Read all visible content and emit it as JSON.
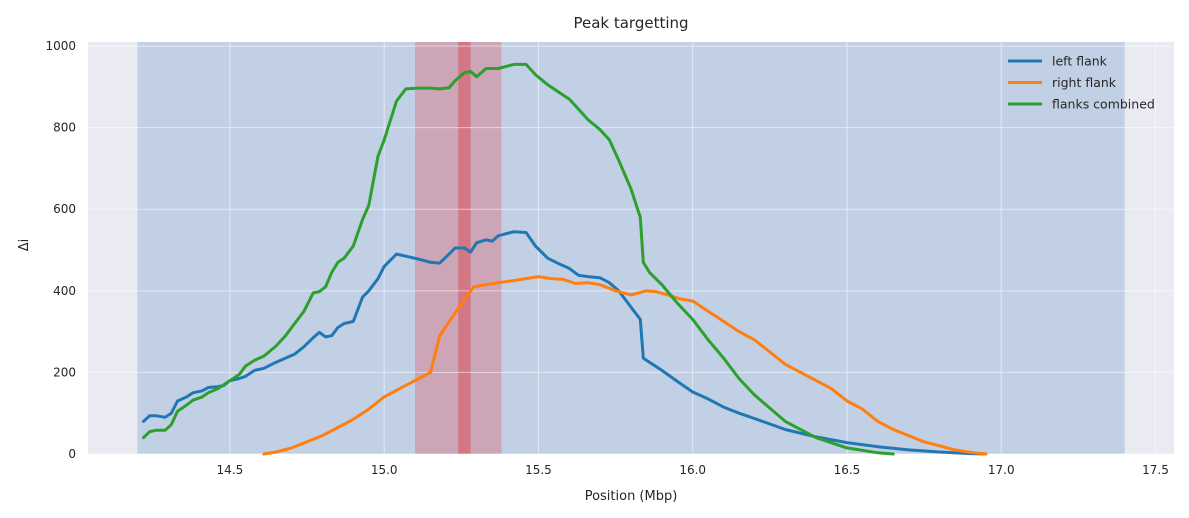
{
  "chart_data": {
    "type": "line",
    "title": "Peak targetting",
    "xlabel": "Position (Mbp)",
    "ylabel": "Δi",
    "xlim": [
      14.04,
      17.56
    ],
    "ylim": [
      0,
      1010
    ],
    "xticks": [
      14.5,
      15.0,
      15.5,
      16.0,
      16.5,
      17.0,
      17.5
    ],
    "xtick_labels": [
      "14.5",
      "15.0",
      "15.5",
      "16.0",
      "16.5",
      "17.0",
      "17.5"
    ],
    "yticks": [
      0,
      200,
      400,
      600,
      800,
      1000
    ],
    "ytick_labels": [
      "0",
      "200",
      "400",
      "600",
      "800",
      "1000"
    ],
    "grid": true,
    "legend_position": "top-right",
    "spans": [
      {
        "x0": 14.2,
        "x1": 17.4,
        "color": "#4c84c4",
        "opacity": 0.25
      },
      {
        "x0": 15.1,
        "x1": 15.38,
        "color": "#e0565e",
        "opacity": 0.35
      },
      {
        "x0": 15.24,
        "x1": 15.28,
        "color": "#d94048",
        "opacity": 0.45
      }
    ],
    "series": [
      {
        "name": "left flank",
        "color": "#1f77b4",
        "points": [
          [
            14.22,
            80
          ],
          [
            14.24,
            94
          ],
          [
            14.26,
            94
          ],
          [
            14.29,
            90
          ],
          [
            14.31,
            100
          ],
          [
            14.33,
            130
          ],
          [
            14.36,
            140
          ],
          [
            14.38,
            150
          ],
          [
            14.41,
            155
          ],
          [
            14.43,
            163
          ],
          [
            14.46,
            165
          ],
          [
            14.48,
            168
          ],
          [
            14.5,
            180
          ],
          [
            14.53,
            185
          ],
          [
            14.55,
            190
          ],
          [
            14.58,
            205
          ],
          [
            14.61,
            210
          ],
          [
            14.65,
            225
          ],
          [
            14.68,
            235
          ],
          [
            14.71,
            245
          ],
          [
            14.74,
            263
          ],
          [
            14.77,
            285
          ],
          [
            14.79,
            298
          ],
          [
            14.81,
            287
          ],
          [
            14.83,
            290
          ],
          [
            14.85,
            310
          ],
          [
            14.87,
            320
          ],
          [
            14.9,
            325
          ],
          [
            14.93,
            385
          ],
          [
            14.95,
            400
          ],
          [
            14.98,
            430
          ],
          [
            15.0,
            460
          ],
          [
            15.04,
            490
          ],
          [
            15.07,
            485
          ],
          [
            15.11,
            478
          ],
          [
            15.15,
            470
          ],
          [
            15.18,
            468
          ],
          [
            15.21,
            490
          ],
          [
            15.23,
            505
          ],
          [
            15.26,
            505
          ],
          [
            15.28,
            495
          ],
          [
            15.3,
            518
          ],
          [
            15.33,
            525
          ],
          [
            15.35,
            522
          ],
          [
            15.37,
            535
          ],
          [
            15.42,
            545
          ],
          [
            15.46,
            543
          ],
          [
            15.49,
            510
          ],
          [
            15.53,
            480
          ],
          [
            15.57,
            465
          ],
          [
            15.6,
            455
          ],
          [
            15.63,
            438
          ],
          [
            15.66,
            435
          ],
          [
            15.7,
            432
          ],
          [
            15.73,
            420
          ],
          [
            15.76,
            400
          ],
          [
            15.8,
            360
          ],
          [
            15.83,
            330
          ],
          [
            15.84,
            235
          ],
          [
            15.86,
            225
          ],
          [
            15.9,
            205
          ],
          [
            15.95,
            178
          ],
          [
            16.0,
            152
          ],
          [
            16.05,
            135
          ],
          [
            16.1,
            115
          ],
          [
            16.15,
            100
          ],
          [
            16.2,
            87
          ],
          [
            16.3,
            60
          ],
          [
            16.4,
            42
          ],
          [
            16.5,
            28
          ],
          [
            16.6,
            18
          ],
          [
            16.7,
            10
          ],
          [
            16.8,
            5
          ],
          [
            16.9,
            1
          ],
          [
            16.95,
            0
          ]
        ]
      },
      {
        "name": "right flank",
        "color": "#ff7f0e",
        "points": [
          [
            14.61,
            0
          ],
          [
            14.65,
            5
          ],
          [
            14.7,
            15
          ],
          [
            14.75,
            30
          ],
          [
            14.8,
            45
          ],
          [
            14.85,
            65
          ],
          [
            14.9,
            85
          ],
          [
            14.95,
            110
          ],
          [
            15.0,
            140
          ],
          [
            15.05,
            160
          ],
          [
            15.1,
            180
          ],
          [
            15.15,
            200
          ],
          [
            15.18,
            290
          ],
          [
            15.22,
            335
          ],
          [
            15.26,
            378
          ],
          [
            15.29,
            410
          ],
          [
            15.33,
            415
          ],
          [
            15.37,
            420
          ],
          [
            15.42,
            425
          ],
          [
            15.46,
            430
          ],
          [
            15.5,
            435
          ],
          [
            15.54,
            430
          ],
          [
            15.58,
            428
          ],
          [
            15.62,
            418
          ],
          [
            15.66,
            420
          ],
          [
            15.7,
            415
          ],
          [
            15.75,
            400
          ],
          [
            15.8,
            390
          ],
          [
            15.85,
            400
          ],
          [
            15.88,
            398
          ],
          [
            15.92,
            390
          ],
          [
            15.96,
            380
          ],
          [
            16.0,
            375
          ],
          [
            16.05,
            350
          ],
          [
            16.1,
            325
          ],
          [
            16.15,
            300
          ],
          [
            16.2,
            280
          ],
          [
            16.25,
            250
          ],
          [
            16.3,
            220
          ],
          [
            16.35,
            200
          ],
          [
            16.4,
            180
          ],
          [
            16.45,
            160
          ],
          [
            16.5,
            130
          ],
          [
            16.55,
            110
          ],
          [
            16.6,
            80
          ],
          [
            16.65,
            60
          ],
          [
            16.7,
            45
          ],
          [
            16.75,
            30
          ],
          [
            16.8,
            20
          ],
          [
            16.85,
            10
          ],
          [
            16.9,
            4
          ],
          [
            16.95,
            0
          ]
        ]
      },
      {
        "name": "flanks combined",
        "color": "#2ca02c",
        "points": [
          [
            14.22,
            40
          ],
          [
            14.24,
            55
          ],
          [
            14.26,
            58
          ],
          [
            14.29,
            58
          ],
          [
            14.31,
            72
          ],
          [
            14.33,
            105
          ],
          [
            14.36,
            120
          ],
          [
            14.38,
            132
          ],
          [
            14.41,
            140
          ],
          [
            14.43,
            150
          ],
          [
            14.46,
            160
          ],
          [
            14.48,
            170
          ],
          [
            14.5,
            180
          ],
          [
            14.53,
            195
          ],
          [
            14.55,
            215
          ],
          [
            14.58,
            230
          ],
          [
            14.61,
            240
          ],
          [
            14.65,
            265
          ],
          [
            14.68,
            290
          ],
          [
            14.71,
            320
          ],
          [
            14.74,
            350
          ],
          [
            14.77,
            395
          ],
          [
            14.79,
            398
          ],
          [
            14.81,
            410
          ],
          [
            14.83,
            445
          ],
          [
            14.85,
            470
          ],
          [
            14.87,
            480
          ],
          [
            14.9,
            510
          ],
          [
            14.93,
            575
          ],
          [
            14.95,
            610
          ],
          [
            14.98,
            730
          ],
          [
            15.0,
            770
          ],
          [
            15.04,
            865
          ],
          [
            15.07,
            895
          ],
          [
            15.11,
            897
          ],
          [
            15.15,
            897
          ],
          [
            15.18,
            895
          ],
          [
            15.21,
            898
          ],
          [
            15.23,
            915
          ],
          [
            15.26,
            935
          ],
          [
            15.28,
            938
          ],
          [
            15.3,
            925
          ],
          [
            15.33,
            945
          ],
          [
            15.35,
            945
          ],
          [
            15.37,
            945
          ],
          [
            15.42,
            955
          ],
          [
            15.46,
            955
          ],
          [
            15.49,
            930
          ],
          [
            15.53,
            905
          ],
          [
            15.57,
            885
          ],
          [
            15.6,
            870
          ],
          [
            15.63,
            845
          ],
          [
            15.66,
            820
          ],
          [
            15.7,
            795
          ],
          [
            15.73,
            770
          ],
          [
            15.76,
            720
          ],
          [
            15.8,
            650
          ],
          [
            15.83,
            580
          ],
          [
            15.84,
            470
          ],
          [
            15.86,
            445
          ],
          [
            15.9,
            415
          ],
          [
            15.95,
            370
          ],
          [
            16.0,
            330
          ],
          [
            16.05,
            280
          ],
          [
            16.1,
            235
          ],
          [
            16.15,
            185
          ],
          [
            16.2,
            145
          ],
          [
            16.3,
            80
          ],
          [
            16.4,
            40
          ],
          [
            16.5,
            15
          ],
          [
            16.6,
            3
          ],
          [
            16.65,
            0
          ]
        ]
      }
    ]
  }
}
